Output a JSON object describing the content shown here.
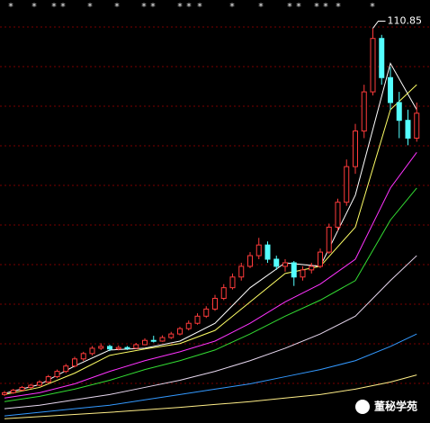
{
  "chart_data": {
    "type": "candlestick",
    "markers": [
      "*",
      "*",
      "*",
      "*",
      "*",
      "*",
      "*",
      "*",
      "*",
      "*",
      "*",
      "*",
      "*",
      "*",
      "*",
      "*",
      "*",
      "*",
      "*"
    ],
    "high_label": "110.85",
    "watermark": "董秘学苑",
    "up_color": "#ff3b3b",
    "down_color": "#54ffff",
    "ylim": [
      0,
      118.8
    ],
    "ohlc": [
      [
        8,
        9,
        7.6,
        8.5
      ],
      [
        8.5,
        9.6,
        8.2,
        9.2
      ],
      [
        9.2,
        10.4,
        9,
        10
      ],
      [
        10,
        11,
        9.6,
        10.6
      ],
      [
        10.6,
        12,
        10.3,
        11.5
      ],
      [
        11.5,
        13.5,
        11.2,
        13
      ],
      [
        13,
        15,
        12.6,
        14.5
      ],
      [
        14.5,
        16.6,
        14,
        16
      ],
      [
        16,
        18.6,
        15.6,
        18
      ],
      [
        18,
        20,
        17.4,
        19.5
      ],
      [
        19.5,
        21.6,
        19,
        21
      ],
      [
        21,
        22.4,
        20.5,
        21.5
      ],
      [
        21.5,
        22,
        20.2,
        20.8
      ],
      [
        20.8,
        21.8,
        20.4,
        21.2
      ],
      [
        21.2,
        21.6,
        20.5,
        21
      ],
      [
        21,
        22.5,
        20.8,
        22
      ],
      [
        22,
        23.8,
        21.8,
        23.2
      ],
      [
        23.2,
        24.5,
        22.6,
        23
      ],
      [
        23,
        24.6,
        22.8,
        24
      ],
      [
        24,
        25.6,
        23.6,
        25
      ],
      [
        25,
        27,
        24.6,
        26.5
      ],
      [
        26.5,
        28.8,
        26,
        28
      ],
      [
        28,
        30.8,
        27.6,
        30
      ],
      [
        30,
        32.8,
        29.5,
        32
      ],
      [
        32,
        36,
        31.5,
        35
      ],
      [
        35,
        39,
        34.5,
        38
      ],
      [
        38,
        42,
        37.5,
        41
      ],
      [
        41,
        45,
        40,
        44
      ],
      [
        44,
        48,
        43.5,
        47
      ],
      [
        47,
        52,
        46,
        50
      ],
      [
        50,
        51,
        45,
        46
      ],
      [
        46,
        47,
        43,
        44
      ],
      [
        44,
        46,
        42.5,
        45
      ],
      [
        45,
        45.5,
        38.5,
        41
      ],
      [
        41,
        44,
        40,
        43
      ],
      [
        43,
        45,
        42,
        44
      ],
      [
        44,
        49,
        43.5,
        48
      ],
      [
        48,
        56,
        47.5,
        55
      ],
      [
        55,
        63,
        54,
        62
      ],
      [
        62,
        74,
        61,
        72
      ],
      [
        72,
        84,
        70,
        82
      ],
      [
        82,
        95,
        80,
        93
      ],
      [
        93,
        110.85,
        92,
        108
      ],
      [
        108,
        109,
        95,
        97
      ],
      [
        97,
        100,
        88,
        90
      ],
      [
        90,
        93,
        80,
        85
      ],
      [
        85,
        88,
        78,
        80
      ],
      [
        80,
        90,
        79,
        87
      ]
    ],
    "lines": [
      {
        "color": "#ffffff",
        "x": [
          0,
          4,
          8,
          12,
          16,
          20,
          24,
          28,
          32,
          36,
          40,
          44,
          47
        ],
        "values": [
          8.3,
          10.8,
          16,
          20.5,
          21,
          23,
          28,
          38,
          45,
          44,
          64,
          101,
          88
        ]
      },
      {
        "color": "#ffff66",
        "x": [
          0,
          4,
          8,
          12,
          16,
          20,
          24,
          28,
          32,
          36,
          40,
          44,
          47
        ],
        "values": [
          8,
          10,
          14,
          19,
          20.8,
          22.3,
          26,
          34,
          42,
          44,
          55,
          88,
          95
        ]
      },
      {
        "color": "#ff33ff",
        "x": [
          0,
          4,
          8,
          12,
          16,
          20,
          24,
          28,
          32,
          36,
          40,
          44,
          47
        ],
        "values": [
          7,
          8.5,
          11,
          14.5,
          17.5,
          20,
          23,
          28,
          34,
          39,
          46,
          66,
          76
        ]
      },
      {
        "color": "#33dd33",
        "x": [
          0,
          4,
          8,
          12,
          16,
          20,
          24,
          28,
          32,
          36,
          40,
          44,
          47
        ],
        "values": [
          6,
          7.5,
          9.5,
          12,
          15,
          17.5,
          20.5,
          25,
          30,
          34.5,
          40,
          57,
          66
        ]
      },
      {
        "color": "#e8d8f0",
        "x": [
          0,
          4,
          8,
          12,
          16,
          20,
          24,
          28,
          32,
          36,
          40,
          44,
          47
        ],
        "values": [
          4,
          5,
          6.5,
          8,
          10,
          12,
          14.5,
          17.5,
          21,
          25,
          30,
          40,
          47
        ]
      },
      {
        "color": "#3399ff",
        "x": [
          0,
          4,
          8,
          12,
          16,
          20,
          24,
          28,
          32,
          36,
          40,
          44,
          47
        ],
        "values": [
          2,
          3,
          4,
          5,
          6.5,
          8,
          9.5,
          11,
          13,
          15,
          17.5,
          21.5,
          25
        ]
      },
      {
        "color": "#ffee88",
        "x": [
          0,
          4,
          8,
          12,
          16,
          20,
          24,
          28,
          32,
          36,
          40,
          44,
          47
        ],
        "values": [
          1.2,
          1.8,
          2.4,
          3,
          3.7,
          4.4,
          5.2,
          6,
          7,
          8,
          9.5,
          11.5,
          13.5
        ]
      }
    ]
  }
}
